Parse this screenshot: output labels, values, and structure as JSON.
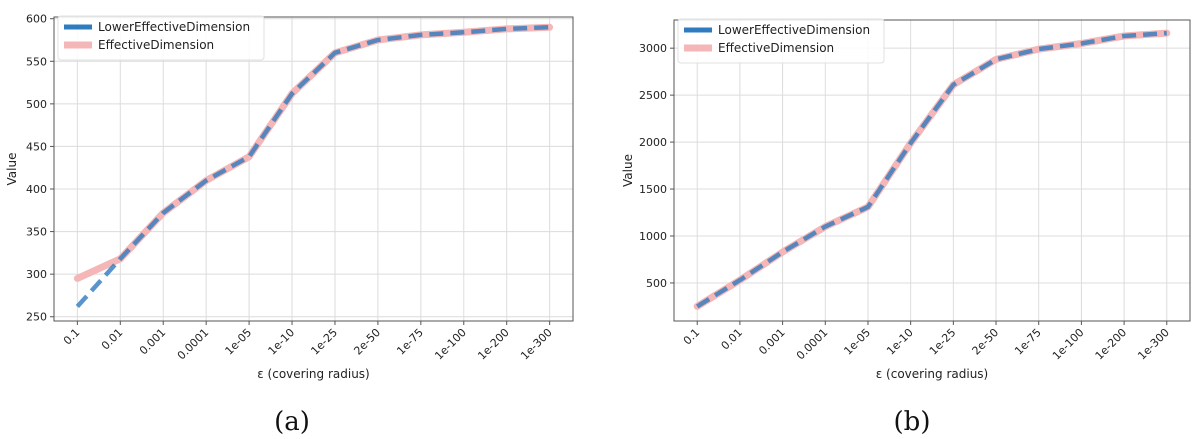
{
  "chart_data": [
    {
      "type": "line",
      "caption": "(a)",
      "categories": [
        "0.1",
        "0.01",
        "0.001",
        "0.0001",
        "1e-05",
        "1e-10",
        "1e-25",
        "2e-50",
        "1e-75",
        "1e-100",
        "1e-200",
        "1e-300"
      ],
      "xlabel": "ε (covering radius)",
      "ylabel": "Value",
      "ylim": [
        245,
        602
      ],
      "yticks": [
        250,
        300,
        350,
        400,
        450,
        500,
        550,
        600
      ],
      "grid": true,
      "legend_position": "top-left",
      "series": [
        {
          "name": "LowerEffectiveDimension",
          "color": "#2f7bbf",
          "values": [
            262,
            318,
            372,
            410,
            438,
            512,
            560,
            575,
            581,
            584,
            588,
            590
          ]
        },
        {
          "name": "EffectiveDimension",
          "color": "#f4b6b6",
          "values": [
            295,
            318,
            372,
            410,
            438,
            512,
            560,
            575,
            581,
            584,
            588,
            590
          ]
        }
      ]
    },
    {
      "type": "line",
      "caption": "(b)",
      "categories": [
        "0.1",
        "0.01",
        "0.001",
        "0.0001",
        "1e-05",
        "1e-10",
        "1e-25",
        "2e-50",
        "1e-75",
        "1e-100",
        "1e-200",
        "1e-300"
      ],
      "xlabel": "ε (covering radius)",
      "ylabel": "Value",
      "ylim": [
        95,
        3300
      ],
      "yticks": [
        500,
        1000,
        1500,
        2000,
        2500,
        3000
      ],
      "grid": true,
      "legend_position": "top-left",
      "series": [
        {
          "name": "LowerEffectiveDimension",
          "color": "#2f7bbf",
          "values": [
            250,
            530,
            830,
            1100,
            1310,
            1990,
            2610,
            2880,
            2990,
            3050,
            3130,
            3160
          ]
        },
        {
          "name": "EffectiveDimension",
          "color": "#f4b6b6",
          "values": [
            250,
            530,
            830,
            1100,
            1310,
            1990,
            2610,
            2880,
            2990,
            3050,
            3130,
            3160
          ]
        }
      ]
    }
  ]
}
